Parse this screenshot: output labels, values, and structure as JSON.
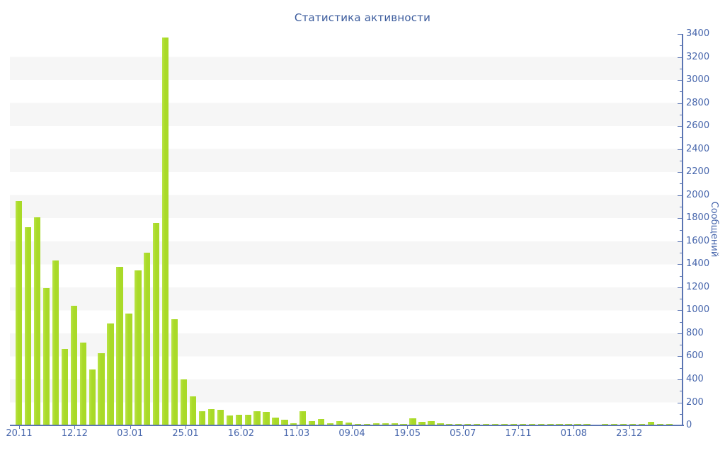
{
  "chart_data": {
    "type": "bar",
    "title": "Статистика активности",
    "ylabel": "Сообщений",
    "xlabel": "",
    "ylim": [
      0,
      3400
    ],
    "y_tick_step": 200,
    "y_minor_tick_step": 100,
    "grid": "striped-horizontal-bands",
    "legend": "none",
    "x_tick_labels": [
      "20.11",
      "12.12",
      "03.01",
      "25.01",
      "16.02",
      "11.03",
      "09.04",
      "19.05",
      "05.07",
      "17.11",
      "01.08",
      "23.12"
    ],
    "values": [
      1950,
      1720,
      1810,
      1190,
      1430,
      665,
      1040,
      720,
      485,
      630,
      885,
      1375,
      970,
      1345,
      1500,
      1760,
      3370,
      925,
      400,
      255,
      125,
      140,
      135,
      85,
      90,
      95,
      120,
      115,
      65,
      50,
      20,
      120,
      40,
      57,
      18,
      37,
      27,
      15,
      15,
      18,
      16,
      18,
      15,
      63,
      33,
      40,
      18,
      12,
      12,
      12,
      12,
      12,
      10,
      10,
      10,
      10,
      10,
      12,
      10,
      10,
      10,
      12,
      10,
      8,
      10,
      12,
      10,
      10,
      10,
      30,
      12,
      10,
      8
    ],
    "colors": {
      "bar": "#a9da28",
      "bar_light": "#b9e345",
      "axis": "#5a74b2",
      "tick_label": "#4766ac",
      "title": "#3c5c9d",
      "stripe": "#f6f6f6",
      "background": "#ffffff"
    }
  }
}
